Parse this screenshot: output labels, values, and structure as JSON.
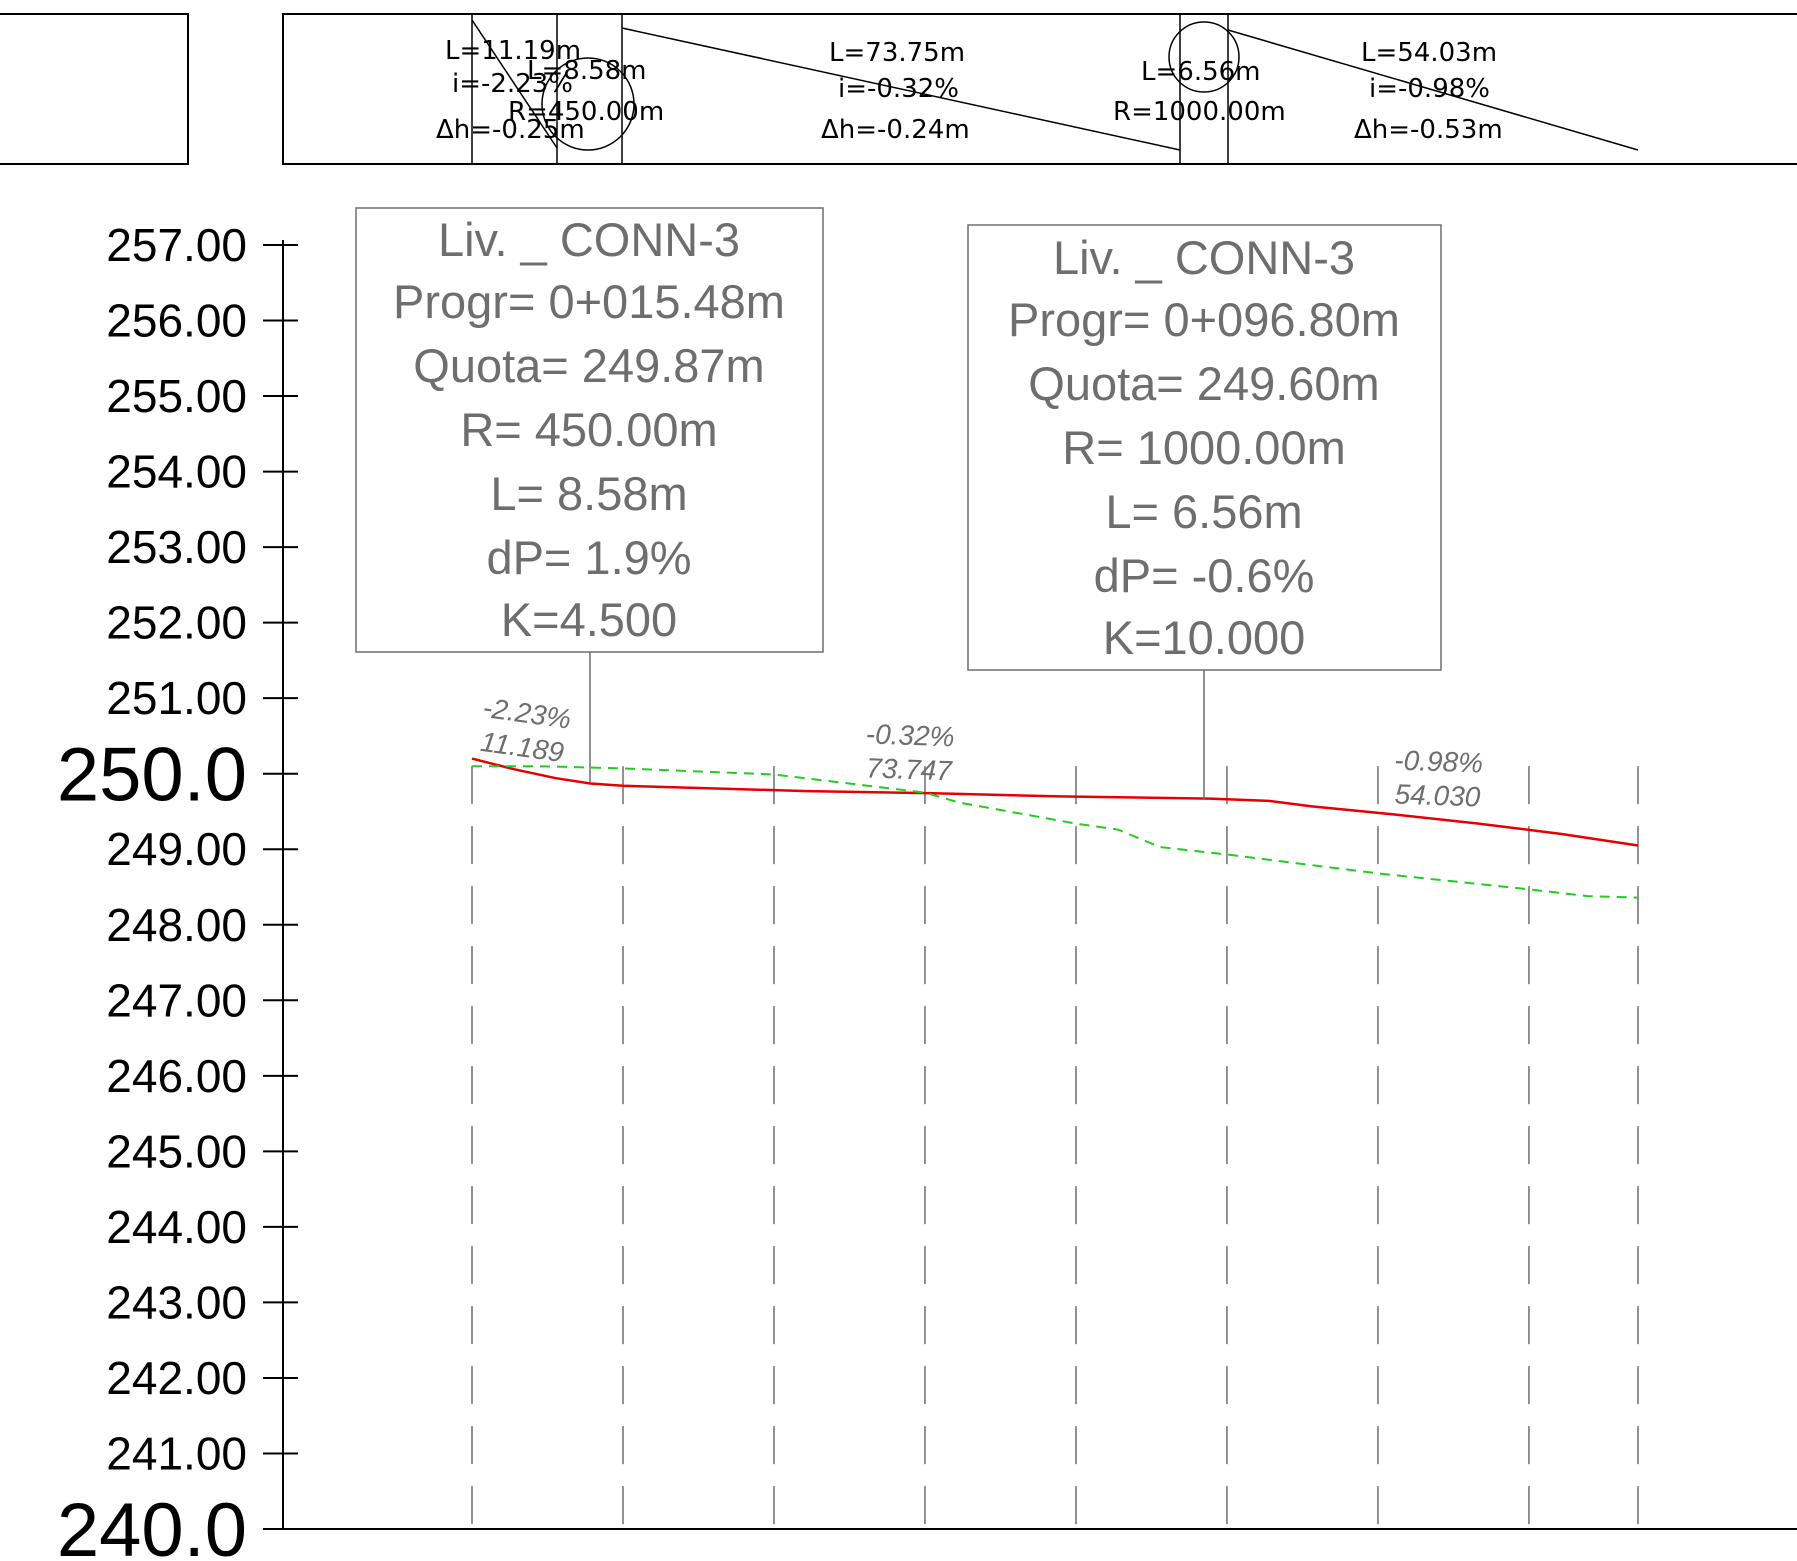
{
  "colors": {
    "axis": "#000000",
    "project_line": "#e60000",
    "terrain_line": "#22cc22",
    "callout_text": "#6e6e6e",
    "callout_border": "#6e6e6e",
    "station_dash": "#6e6e6e"
  },
  "band": {
    "segments": [
      {
        "length": "L=11.19m",
        "slope": "i=-2.23%",
        "dh": "Δh=-0.25m"
      },
      {
        "length": "L=73.75m",
        "slope": "i=-0.32%",
        "dh": "Δh=-0.24m"
      },
      {
        "length": "L=54.03m",
        "slope": "i=-0.98%",
        "dh": "Δh=-0.53m"
      }
    ],
    "curves": [
      {
        "length": "L=8.58m",
        "radius": "R=450.00m"
      },
      {
        "length": "L=6.56m",
        "radius": "R=1000.00m"
      }
    ]
  },
  "callouts": [
    {
      "lines": [
        "Liv. _ CONN-3",
        "Progr= 0+015.48m",
        "Quota= 249.87m",
        "R= 450.00m",
        "L= 8.58m",
        "dP= 1.9%",
        "K=4.500"
      ]
    },
    {
      "lines": [
        "Liv. _ CONN-3",
        "Progr= 0+096.80m",
        "Quota= 249.60m",
        "R= 1000.00m",
        "L= 6.56m",
        "dP= -0.6%",
        "K=10.000"
      ]
    }
  ],
  "chart_data": {
    "type": "line",
    "title": "",
    "xlabel": "",
    "ylabel": "",
    "ylim": [
      240.0,
      257.0
    ],
    "xlim": [
      0,
      139
    ],
    "y_ticks": [
      "257.00",
      "256.00",
      "255.00",
      "254.00",
      "253.00",
      "252.00",
      "251.00",
      "250.0",
      "249.00",
      "248.00",
      "247.00",
      "246.00",
      "245.00",
      "244.00",
      "243.00",
      "242.00",
      "241.00",
      "240.0"
    ],
    "stations": [
      0,
      18,
      36,
      54,
      72,
      90,
      108,
      126,
      139
    ],
    "grade_labels": [
      {
        "slope": "-2.23%",
        "length": "11.189",
        "x": 5.6
      },
      {
        "slope": "-0.32%",
        "length": "73.747",
        "x": 52
      },
      {
        "slope": "-0.98%",
        "length": "54.030",
        "x": 115
      }
    ],
    "series": [
      {
        "name": "",
        "style": "solid",
        "x": [
          0,
          5,
          10,
          14.1,
          18,
          40,
          55,
          70,
          88,
          95,
          100,
          110,
          120,
          130,
          139
        ],
        "y": [
          250.2,
          250.06,
          249.94,
          249.87,
          249.84,
          249.77,
          249.74,
          249.7,
          249.67,
          249.64,
          249.57,
          249.46,
          249.34,
          249.2,
          249.05
        ]
      },
      {
        "name": "",
        "style": "dashed",
        "x": [
          0,
          8,
          18,
          36,
          54,
          58,
          72,
          77,
          82,
          90,
          108,
          126,
          133,
          139
        ],
        "y": [
          250.1,
          250.1,
          250.07,
          249.99,
          249.75,
          249.62,
          249.34,
          249.26,
          249.03,
          248.93,
          248.68,
          248.47,
          248.38,
          248.36
        ]
      }
    ]
  }
}
